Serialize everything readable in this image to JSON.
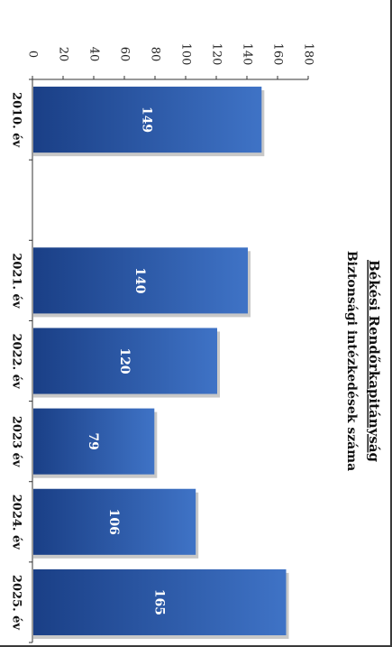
{
  "chart_data": {
    "type": "bar",
    "orientation": "rotated-90",
    "title": "Békési Rendőrkapitányság",
    "subtitle": "Biztonsági intézkedések száma",
    "categories": [
      "2010. év",
      "2021. év",
      "2022. év",
      "2023  év",
      "2024. év",
      "2025. év"
    ],
    "values": [
      149,
      140,
      120,
      79,
      106,
      165
    ],
    "data_labels": [
      "149",
      "140",
      "120",
      "79",
      "106",
      "165"
    ],
    "ylim": [
      0,
      180
    ],
    "y_ticks": [
      0,
      20,
      40,
      60,
      80,
      100,
      120,
      140,
      160,
      180
    ],
    "grid": false,
    "legend": "none",
    "colors": {
      "bar_dark": "#1a3f86",
      "bar_light": "#3f73c6",
      "label": "#ffffff",
      "axis": "#333333"
    }
  }
}
